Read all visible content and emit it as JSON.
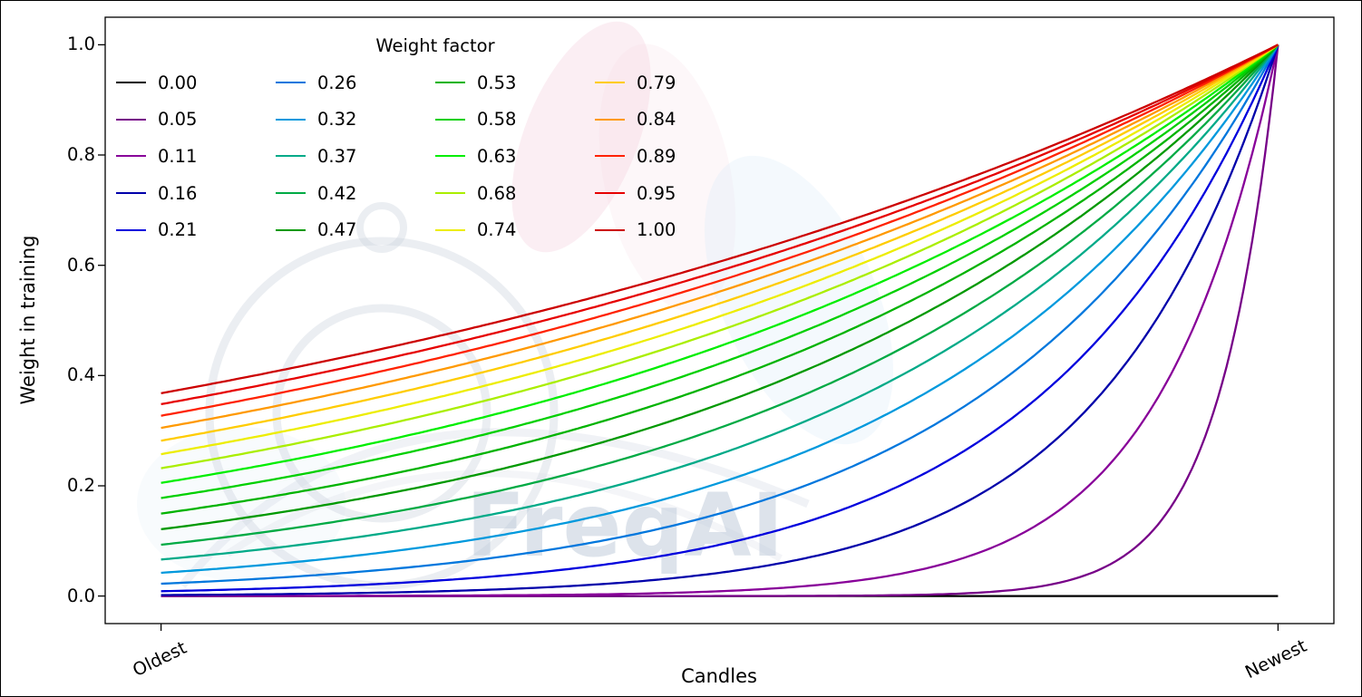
{
  "chart_data": {
    "type": "line",
    "title": "",
    "xlabel": "Candles",
    "ylabel": "Weight in training",
    "legend_title": "Weight factor",
    "legend_position": "upper left",
    "legend_columns": 4,
    "grid": false,
    "xlim": [
      -0.05,
      1.05
    ],
    "ylim": [
      -0.05,
      1.05
    ],
    "x_ticks": [
      {
        "pos": 0.0,
        "label": "Oldest"
      },
      {
        "pos": 1.0,
        "label": "Newest"
      }
    ],
    "y_ticks": [
      {
        "pos": 0.0,
        "label": "0.0"
      },
      {
        "pos": 0.2,
        "label": "0.2"
      },
      {
        "pos": 0.4,
        "label": "0.4"
      },
      {
        "pos": 0.6,
        "label": "0.6"
      },
      {
        "pos": 0.8,
        "label": "0.8"
      },
      {
        "pos": 1.0,
        "label": "1.0"
      }
    ],
    "curve_formula": "weight(x) = exp(-(1 - x) / factor) for x in [0 (Oldest), 1 (Newest)]; factor 0.00 gives weight 0; all curves reach 1.0 at Newest",
    "series": [
      {
        "label": "0.00",
        "factor": 0.0,
        "color": "#000000"
      },
      {
        "label": "0.05",
        "factor": 0.0526,
        "color": "#770088"
      },
      {
        "label": "0.11",
        "factor": 0.1053,
        "color": "#880099"
      },
      {
        "label": "0.16",
        "factor": 0.1579,
        "color": "#0000aa"
      },
      {
        "label": "0.21",
        "factor": 0.2105,
        "color": "#0000dd"
      },
      {
        "label": "0.26",
        "factor": 0.2632,
        "color": "#0077dd"
      },
      {
        "label": "0.32",
        "factor": 0.3158,
        "color": "#0099dd"
      },
      {
        "label": "0.37",
        "factor": 0.3684,
        "color": "#00aa88"
      },
      {
        "label": "0.42",
        "factor": 0.4211,
        "color": "#00aa44"
      },
      {
        "label": "0.47",
        "factor": 0.4737,
        "color": "#009900"
      },
      {
        "label": "0.53",
        "factor": 0.5263,
        "color": "#00b300"
      },
      {
        "label": "0.58",
        "factor": 0.5789,
        "color": "#00d000"
      },
      {
        "label": "0.63",
        "factor": 0.6316,
        "color": "#00ee00"
      },
      {
        "label": "0.68",
        "factor": 0.6842,
        "color": "#aaee00"
      },
      {
        "label": "0.74",
        "factor": 0.7368,
        "color": "#eded00"
      },
      {
        "label": "0.79",
        "factor": 0.7895,
        "color": "#ffcc00"
      },
      {
        "label": "0.84",
        "factor": 0.8421,
        "color": "#ff9900"
      },
      {
        "label": "0.89",
        "factor": 0.8947,
        "color": "#ff2200"
      },
      {
        "label": "0.95",
        "factor": 0.9474,
        "color": "#e60000"
      },
      {
        "label": "1.00",
        "factor": 1.0,
        "color": "#cc0000"
      }
    ]
  },
  "watermark": {
    "text": "FreqAI"
  }
}
